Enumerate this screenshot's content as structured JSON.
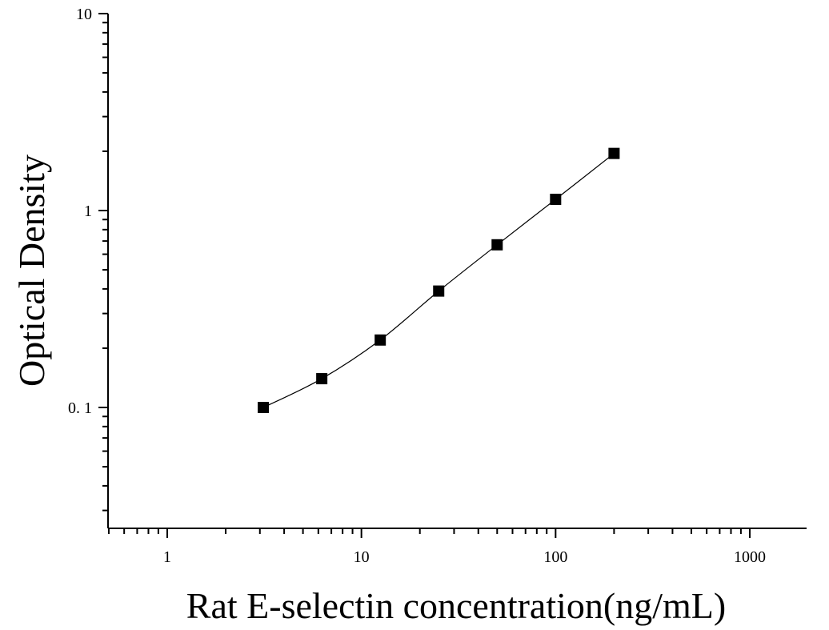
{
  "chart_data": {
    "type": "scatter",
    "xlabel": "Rat E-selectin concentration(ng/mL)",
    "ylabel": "Optical Density",
    "x_scale": "log",
    "y_scale": "log",
    "xlim": [
      0.5,
      2000
    ],
    "ylim": [
      0.025,
      10
    ],
    "x_ticks": [
      {
        "value": 1,
        "label": "1"
      },
      {
        "value": 10,
        "label": "10"
      },
      {
        "value": 100,
        "label": "100"
      },
      {
        "value": 1000,
        "label": "1000"
      }
    ],
    "y_ticks": [
      {
        "value": 0.1,
        "label": "0. 1"
      },
      {
        "value": 1,
        "label": "1"
      },
      {
        "value": 10,
        "label": "10"
      }
    ],
    "grid": false,
    "legend": false,
    "series": [
      {
        "marker": "square",
        "color": "#000000",
        "points": [
          {
            "x": 3.125,
            "y": 0.1
          },
          {
            "x": 6.25,
            "y": 0.14
          },
          {
            "x": 12.5,
            "y": 0.22
          },
          {
            "x": 25,
            "y": 0.39
          },
          {
            "x": 50,
            "y": 0.67
          },
          {
            "x": 100,
            "y": 1.14
          },
          {
            "x": 200,
            "y": 1.95
          }
        ],
        "fit_line": true
      }
    ]
  }
}
